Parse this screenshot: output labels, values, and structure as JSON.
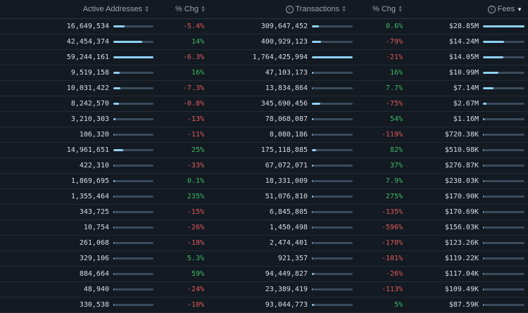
{
  "header": {
    "active_addresses": "Active Addresses",
    "pct_chg_1": "% Chg",
    "transactions": "Transactions",
    "pct_chg_2": "% Chg",
    "fees": "Fees",
    "sort_column": "fees",
    "sort_direction": "desc"
  },
  "rows": [
    {
      "addr": "16,649,534",
      "addr_bar": 0.28,
      "chg1": "-5.4%",
      "tx": "309,647,452",
      "tx_bar": 0.18,
      "chg2": "0.6%",
      "fees": "$28.85M",
      "fees_bar": 1.0
    },
    {
      "addr": "42,454,374",
      "addr_bar": 0.72,
      "chg1": "14%",
      "tx": "400,929,123",
      "tx_bar": 0.23,
      "chg2": "-79%",
      "fees": "$14.24M",
      "fees_bar": 0.5
    },
    {
      "addr": "59,244,161",
      "addr_bar": 1.0,
      "chg1": "-6.3%",
      "tx": "1,764,425,994",
      "tx_bar": 1.0,
      "chg2": "-21%",
      "fees": "$14.05M",
      "fees_bar": 0.49
    },
    {
      "addr": "9,519,158",
      "addr_bar": 0.16,
      "chg1": "16%",
      "tx": "47,103,173",
      "tx_bar": 0.03,
      "chg2": "16%",
      "fees": "$10.99M",
      "fees_bar": 0.38
    },
    {
      "addr": "10,031,422",
      "addr_bar": 0.17,
      "chg1": "-7.3%",
      "tx": "13,834,864",
      "tx_bar": 0.01,
      "chg2": "7.7%",
      "fees": "$7.14M",
      "fees_bar": 0.25
    },
    {
      "addr": "8,242,570",
      "addr_bar": 0.14,
      "chg1": "-0.8%",
      "tx": "345,690,456",
      "tx_bar": 0.2,
      "chg2": "-75%",
      "fees": "$2.67M",
      "fees_bar": 0.09
    },
    {
      "addr": "3,210,303",
      "addr_bar": 0.05,
      "chg1": "-13%",
      "tx": "78,068,087",
      "tx_bar": 0.04,
      "chg2": "54%",
      "fees": "$1.16M",
      "fees_bar": 0.04
    },
    {
      "addr": "106,320",
      "addr_bar": 0.01,
      "chg1": "-11%",
      "tx": "8,080,186",
      "tx_bar": 0.01,
      "chg2": "-119%",
      "fees": "$720.38K",
      "fees_bar": 0.02
    },
    {
      "addr": "14,961,651",
      "addr_bar": 0.25,
      "chg1": "25%",
      "tx": "175,118,885",
      "tx_bar": 0.1,
      "chg2": "82%",
      "fees": "$510.98K",
      "fees_bar": 0.02
    },
    {
      "addr": "422,310",
      "addr_bar": 0.01,
      "chg1": "-33%",
      "tx": "67,072,071",
      "tx_bar": 0.04,
      "chg2": "37%",
      "fees": "$276.87K",
      "fees_bar": 0.01
    },
    {
      "addr": "1,869,695",
      "addr_bar": 0.03,
      "chg1": "0.1%",
      "tx": "18,331,009",
      "tx_bar": 0.01,
      "chg2": "7.9%",
      "fees": "$238.03K",
      "fees_bar": 0.01
    },
    {
      "addr": "1,355,464",
      "addr_bar": 0.02,
      "chg1": "235%",
      "tx": "51,076,810",
      "tx_bar": 0.03,
      "chg2": "275%",
      "fees": "$170.90K",
      "fees_bar": 0.01
    },
    {
      "addr": "343,725",
      "addr_bar": 0.01,
      "chg1": "-15%",
      "tx": "6,845,805",
      "tx_bar": 0.01,
      "chg2": "-135%",
      "fees": "$170.69K",
      "fees_bar": 0.01
    },
    {
      "addr": "10,754",
      "addr_bar": 0.005,
      "chg1": "-26%",
      "tx": "1,450,498",
      "tx_bar": 0.005,
      "chg2": "-596%",
      "fees": "$156.03K",
      "fees_bar": 0.01
    },
    {
      "addr": "261,068",
      "addr_bar": 0.01,
      "chg1": "-18%",
      "tx": "2,474,401",
      "tx_bar": 0.005,
      "chg2": "-170%",
      "fees": "$123.26K",
      "fees_bar": 0.005
    },
    {
      "addr": "329,106",
      "addr_bar": 0.01,
      "chg1": "5.3%",
      "tx": "921,357",
      "tx_bar": 0.005,
      "chg2": "-101%",
      "fees": "$119.22K",
      "fees_bar": 0.005
    },
    {
      "addr": "884,664",
      "addr_bar": 0.015,
      "chg1": "59%",
      "tx": "94,449,827",
      "tx_bar": 0.05,
      "chg2": "-26%",
      "fees": "$117.04K",
      "fees_bar": 0.005
    },
    {
      "addr": "48,940",
      "addr_bar": 0.005,
      "chg1": "-24%",
      "tx": "23,389,419",
      "tx_bar": 0.015,
      "chg2": "-113%",
      "fees": "$109.49K",
      "fees_bar": 0.005
    },
    {
      "addr": "330,538",
      "addr_bar": 0.01,
      "chg1": "-10%",
      "tx": "93,044,773",
      "tx_bar": 0.05,
      "chg2": "5%",
      "fees": "$87.59K",
      "fees_bar": 0.005
    }
  ],
  "colors": {
    "background": "#131a22",
    "positive": "#3fb968",
    "negative": "#e0595d",
    "bar_fill": "#8fd1f5",
    "bar_track": "#3a4b5c"
  },
  "icons": {
    "transactions_info": "info-circle-icon",
    "fees_info": "info-circle-icon",
    "sort": "sort-arrows-icon"
  }
}
